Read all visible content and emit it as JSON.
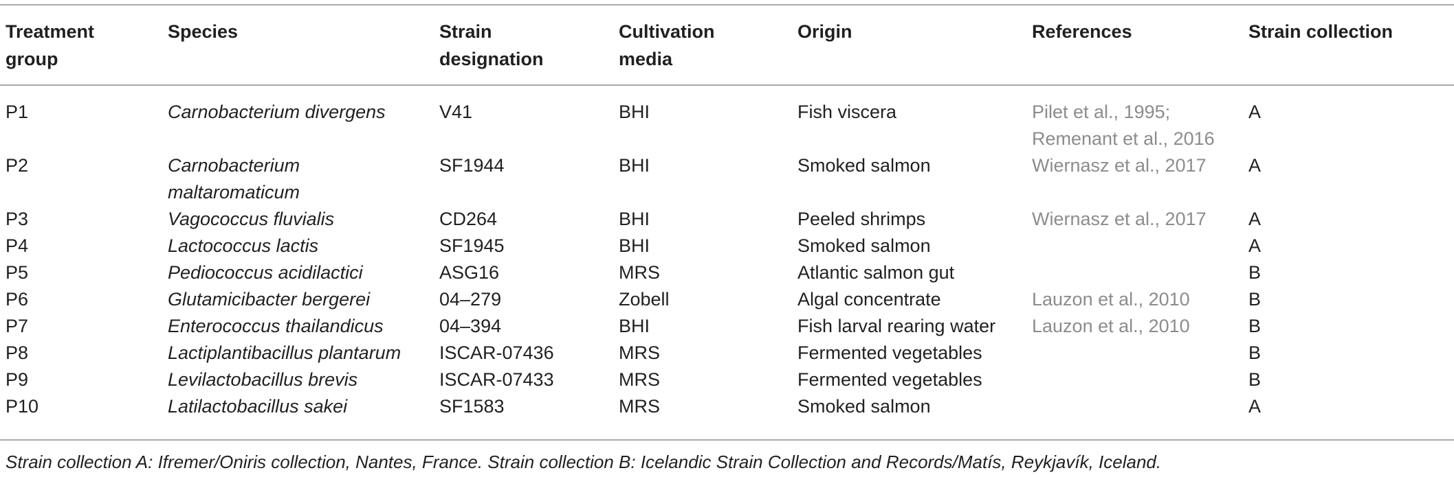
{
  "table": {
    "headers": [
      "Treatment group",
      "Species",
      "Strain designation",
      "Cultivation media",
      "Origin",
      "References",
      "Strain collection"
    ],
    "header_lines": [
      [
        "Treatment",
        "group"
      ],
      [
        "Species"
      ],
      [
        "Strain",
        "designation"
      ],
      [
        "Cultivation",
        "media"
      ],
      [
        "Origin"
      ],
      [
        "References"
      ],
      [
        "Strain collection"
      ]
    ],
    "rows": [
      {
        "group": "P1",
        "species": "Carnobacterium divergens",
        "strain": "V41",
        "media": "BHI",
        "origin": "Fish viscera",
        "references": "Pilet et al., 1995; Remenant et al., 2016",
        "collection": "A"
      },
      {
        "group": "P2",
        "species": "Carnobacterium maltaromaticum",
        "strain": "SF1944",
        "media": "BHI",
        "origin": "Smoked salmon",
        "references": "Wiernasz et al., 2017",
        "collection": "A"
      },
      {
        "group": "P3",
        "species": "Vagococcus fluvialis",
        "strain": "CD264",
        "media": "BHI",
        "origin": "Peeled shrimps",
        "references": "Wiernasz et al., 2017",
        "collection": "A"
      },
      {
        "group": "P4",
        "species": "Lactococcus lactis",
        "strain": "SF1945",
        "media": "BHI",
        "origin": "Smoked salmon",
        "references": "",
        "collection": "A"
      },
      {
        "group": "P5",
        "species": "Pediococcus acidilactici",
        "strain": "ASG16",
        "media": "MRS",
        "origin": "Atlantic salmon gut",
        "references": "",
        "collection": "B"
      },
      {
        "group": "P6",
        "species": "Glutamicibacter bergerei",
        "strain": "04–279",
        "media": "Zobell",
        "origin": "Algal concentrate",
        "references": "Lauzon et al., 2010",
        "collection": "B"
      },
      {
        "group": "P7",
        "species": "Enterococcus thailandicus",
        "strain": "04–394",
        "media": "BHI",
        "origin": "Fish larval rearing water",
        "references": "Lauzon et al., 2010",
        "collection": "B"
      },
      {
        "group": "P8",
        "species": "Lactiplantibacillus plantarum",
        "strain": "ISCAR-07436",
        "media": "MRS",
        "origin": "Fermented vegetables",
        "references": "",
        "collection": "B"
      },
      {
        "group": "P9",
        "species": "Levilactobacillus brevis",
        "strain": "ISCAR-07433",
        "media": "MRS",
        "origin": "Fermented vegetables",
        "references": "",
        "collection": "B"
      },
      {
        "group": "P10",
        "species": "Latilactobacillus sakei",
        "strain": "SF1583",
        "media": "MRS",
        "origin": "Smoked salmon",
        "references": "",
        "collection": "A"
      }
    ]
  },
  "footnote": "Strain collection A: Ifremer/Oniris collection, Nantes, France. Strain collection B: Icelandic Strain Collection and Records/Matís, Reykjavík, Iceland.",
  "colors": {
    "text": "#231f20",
    "reference_text": "#8c8c8c",
    "rule": "#a9a9a9"
  }
}
